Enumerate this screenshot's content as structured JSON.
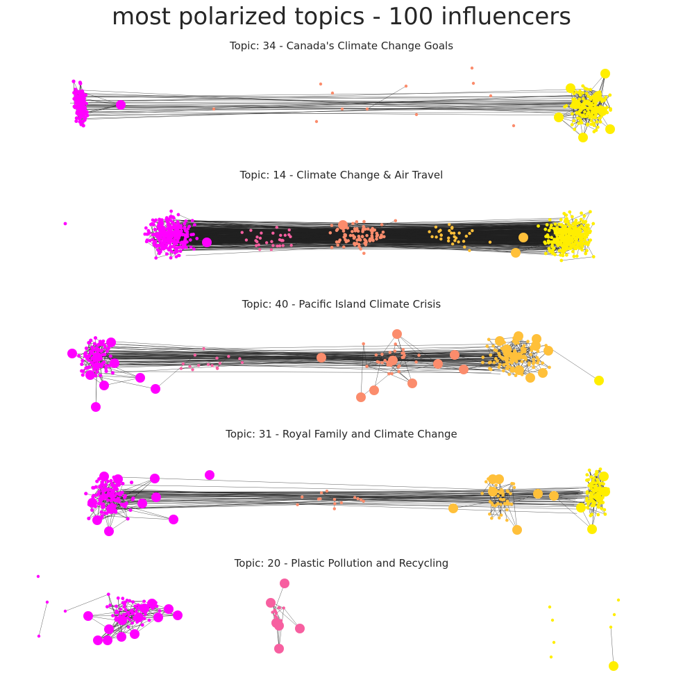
{
  "title": "most polarized topics - 100 influencers",
  "panels": [
    {
      "topic_label": "Topic: 34 - Canada's Climate Change Goals",
      "bridge_density": "sparse"
    },
    {
      "topic_label": "Topic: 14 - Climate Change & Air Travel",
      "bridge_density": "dense"
    },
    {
      "topic_label": "Topic: 40 - Pacific Island Climate Crisis",
      "bridge_density": "medium"
    },
    {
      "topic_label": "Topic: 31 - Royal Family and Climate Change",
      "bridge_density": "medium"
    },
    {
      "topic_label": "Topic: 20 - Plastic Pollution and Recycling",
      "bridge_density": "none"
    }
  ],
  "colors": {
    "left_community": "#ff00ff",
    "center_left": "#f75fa0",
    "center": "#fb8c6c",
    "center_right": "#ffc03a",
    "right_community": "#ffee00",
    "edges": "#222222"
  }
}
